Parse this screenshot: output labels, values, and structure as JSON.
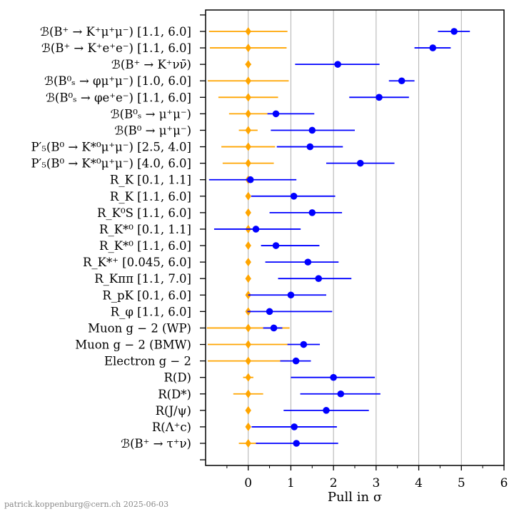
{
  "chart_data": {
    "type": "scatter",
    "xlabel": "Pull in σ",
    "xlim": [
      -1,
      6
    ],
    "xticks": [
      0,
      1,
      2,
      3,
      4,
      5,
      6
    ],
    "grid": "vertical",
    "credit": "patrick.koppenburg@cern.ch  2025-06-03",
    "colors": {
      "measurement": "#0000ff",
      "reference": "#ffa500"
    },
    "categories": [
      "ℬ(B⁺ → K⁺μ⁺μ⁻) [1.1, 6.0]",
      "ℬ(B⁺ → K⁺e⁺e⁻) [1.1, 6.0]",
      "ℬ(B⁺ → K⁺νν̄)",
      "ℬ(B⁰ₛ → φμ⁺μ⁻) [1.0, 6.0]",
      "ℬ(B⁰ₛ → φe⁺e⁻) [1.1, 6.0]",
      "ℬ(B⁰ₛ → μ⁺μ⁻)",
      "ℬ(B⁰ → μ⁺μ⁻)",
      "P′₅(B⁰ → K*⁰μ⁺μ⁻) [2.5, 4.0]",
      "P′₅(B⁰ → K*⁰μ⁺μ⁻) [4.0, 6.0]",
      "R_K [0.1, 1.1]",
      "R_K [1.1, 6.0]",
      "R_K⁰S [1.1, 6.0]",
      "R_K*⁰ [0.1, 1.1]",
      "R_K*⁰ [1.1, 6.0]",
      "R_K*⁺ [0.045, 6.0]",
      "R_Kππ [1.1, 7.0]",
      "R_pK [0.1, 6.0]",
      "R_φ [1.1, 6.0]",
      "Muon g − 2 (WP)",
      "Muon g − 2 (BMW)",
      "Electron g − 2",
      "R(D)",
      "R(D*)",
      "R(J/ψ)",
      "R(Λ⁺c)",
      "ℬ(B⁺ → τ⁺ν)"
    ],
    "series": [
      {
        "role": "measurement",
        "values": [
          4.83,
          4.33,
          2.1,
          3.6,
          3.07,
          0.65,
          1.5,
          1.45,
          2.63,
          0.05,
          1.07,
          1.5,
          0.18,
          0.65,
          1.4,
          1.65,
          1.0,
          0.5,
          0.6,
          1.3,
          1.12,
          2.0,
          2.17,
          1.83,
          1.08,
          1.13
        ],
        "err_low": [
          0.38,
          0.43,
          1.0,
          0.3,
          0.7,
          0.2,
          0.97,
          0.78,
          0.8,
          0.97,
          1.0,
          1.0,
          0.98,
          0.35,
          1.0,
          0.95,
          1.0,
          0.52,
          0.25,
          0.38,
          0.37,
          1.0,
          0.95,
          1.0,
          1.0,
          0.95
        ],
        "err_high": [
          0.37,
          0.42,
          0.98,
          0.3,
          0.7,
          0.9,
          1.0,
          0.77,
          0.8,
          1.08,
          0.97,
          0.7,
          1.05,
          1.02,
          0.72,
          0.77,
          0.83,
          1.47,
          0.2,
          0.38,
          0.35,
          0.97,
          0.93,
          1.0,
          1.0,
          0.98
        ]
      },
      {
        "role": "reference",
        "values": [
          0,
          0,
          0,
          0,
          0,
          0,
          0,
          0,
          0,
          0,
          0,
          0,
          0,
          0,
          0,
          0,
          0,
          0,
          0,
          0,
          0,
          0,
          0,
          0,
          0,
          0
        ],
        "err_low": [
          0.92,
          0.9,
          0.07,
          0.95,
          0.7,
          0.45,
          0.22,
          0.63,
          0.6,
          0.05,
          0.05,
          0.05,
          0.05,
          0.05,
          0.05,
          0.05,
          0.05,
          0.05,
          0.97,
          0.95,
          0.95,
          0.12,
          0.35,
          0.05,
          0.05,
          0.22
        ],
        "err_high": [
          0.92,
          0.9,
          0.07,
          0.95,
          0.7,
          0.45,
          0.22,
          0.63,
          0.6,
          0.05,
          0.05,
          0.05,
          0.05,
          0.05,
          0.05,
          0.05,
          0.05,
          0.05,
          0.97,
          0.95,
          0.95,
          0.12,
          0.35,
          0.05,
          0.05,
          0.22
        ]
      }
    ]
  }
}
